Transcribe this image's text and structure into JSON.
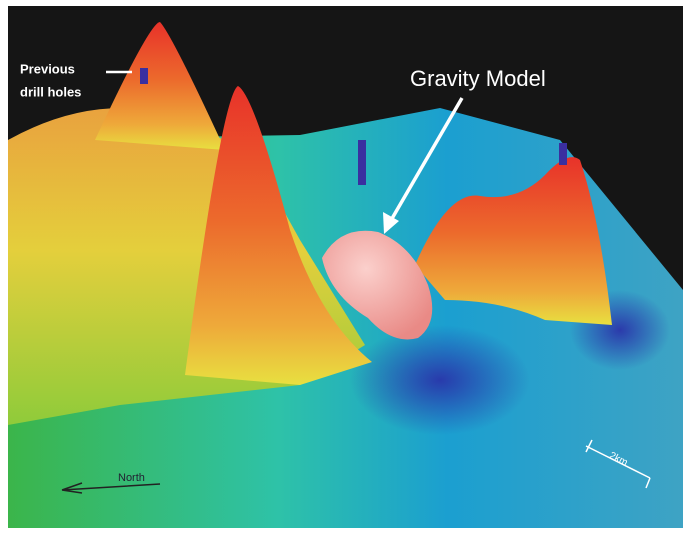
{
  "annotations": {
    "drill_holes": [
      "Previous",
      "drill holes"
    ],
    "gravity_model": "Gravity Model",
    "north": "North",
    "scale": "2km"
  }
}
